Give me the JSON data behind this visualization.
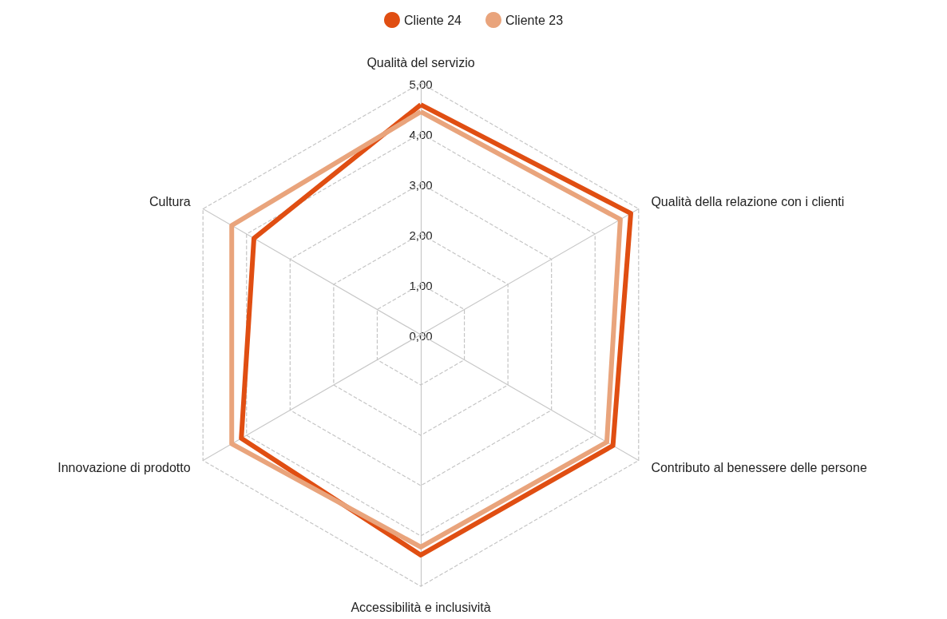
{
  "chart_data": {
    "type": "radar",
    "categories": [
      "Qualità del servizio",
      "Qualità della relazione con i clienti",
      "Contributo al benessere delle persone",
      "Accessibilità e inclusività",
      "Innovazione di prodotto",
      "Cultura"
    ],
    "series": [
      {
        "name": "Cliente 24",
        "color": "#e04e12",
        "values": [
          4.57,
          4.82,
          4.41,
          4.38,
          4.12,
          3.83
        ]
      },
      {
        "name": "Cliente 23",
        "color": "#e9a47c",
        "values": [
          4.43,
          4.58,
          4.27,
          4.22,
          4.34,
          4.34
        ]
      }
    ],
    "ylim": [
      0,
      5
    ],
    "yticks": [
      {
        "value": 0,
        "label": "0,00"
      },
      {
        "value": 1,
        "label": "1,00"
      },
      {
        "value": 2,
        "label": "2,00"
      },
      {
        "value": 3,
        "label": "3,00"
      },
      {
        "value": 4,
        "label": "4,00"
      },
      {
        "value": 5,
        "label": "5,00"
      }
    ],
    "legend": "top"
  }
}
